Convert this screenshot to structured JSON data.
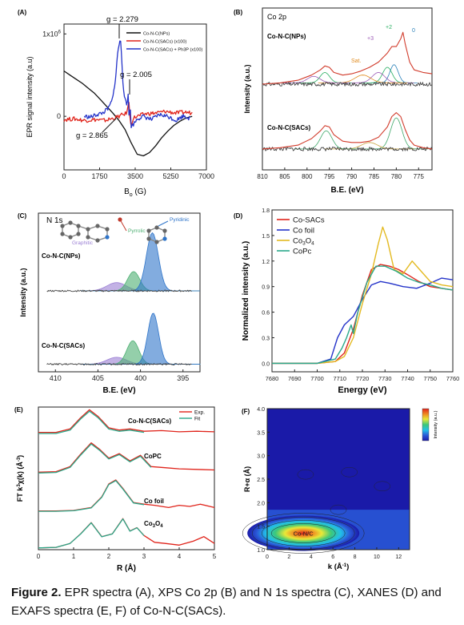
{
  "figure": {
    "caption_label": "Figure 2.",
    "caption_text": " EPR spectra (A), XPS Co 2p (B) and N 1s spectra (C), XANES (D) and EXAFS spectra (E, F) of Co-N-C(SACs)."
  },
  "chart_data": [
    {
      "id": "A",
      "panel_label": "(A)",
      "type": "line",
      "xlabel_main": "B",
      "xlabel_sub": "o",
      "xlabel_unit": " (G)",
      "ylabel": "EPR signal intensity (a.u)",
      "xlim": [
        0,
        7000
      ],
      "xticks": [
        0,
        1750,
        3500,
        5250,
        7000
      ],
      "yticks": [
        {
          "label": "1x10",
          "sup": "6",
          "value": 1.0
        },
        {
          "label": "0",
          "value": 0
        }
      ],
      "ylim": [
        -0.65,
        1.12
      ],
      "legend_position": "top-right",
      "annotations": [
        "g = 2.279",
        "g = 2.005",
        "g = 2.865"
      ],
      "series": [
        {
          "name": "Co-N-C(NPs)",
          "color": "#111111",
          "x": [
            0,
            300,
            600,
            900,
            1200,
            1500,
            1800,
            2100,
            2400,
            2700,
            3000,
            3300,
            3600,
            3900,
            4200,
            4500,
            4800,
            5100,
            5400,
            5700,
            6000,
            6300
          ],
          "y": [
            0.55,
            0.5,
            0.45,
            0.4,
            0.34,
            0.28,
            0.2,
            0.12,
            0.04,
            -0.05,
            -0.16,
            -0.32,
            -0.46,
            -0.48,
            -0.44,
            -0.36,
            -0.26,
            -0.18,
            -0.11,
            -0.06,
            -0.02,
            0.0
          ]
        },
        {
          "name": "Co-N-C(SACs) (x100)",
          "color": "#e0241b",
          "x": [
            0,
            500,
            1000,
            1500,
            2000,
            2500,
            2900,
            3100,
            3180,
            3250,
            3300,
            3400,
            3600,
            4000,
            4500,
            5000,
            5500,
            6000,
            6300
          ],
          "y": [
            -0.04,
            -0.03,
            -0.05,
            -0.04,
            -0.05,
            -0.02,
            0.02,
            0.04,
            0.22,
            -0.06,
            -0.1,
            -0.02,
            0.0,
            0.03,
            0.04,
            0.06,
            0.04,
            0.05,
            0.04
          ]
        },
        {
          "name": "Co-N-C(SACs) + Ph3P (x100)",
          "color": "#2433c9",
          "x": [
            1000,
            1300,
            1600,
            1900,
            2200,
            2400,
            2550,
            2650,
            2750,
            2800,
            2900,
            3000,
            3100,
            3150,
            3200,
            3250,
            3300,
            3400,
            3600,
            3900,
            4300,
            4700,
            5100,
            5500,
            5900,
            6200
          ],
          "y": [
            0.0,
            -0.01,
            0.02,
            0.04,
            0.1,
            0.22,
            0.5,
            0.8,
            0.92,
            0.88,
            0.4,
            0.2,
            0.12,
            0.3,
            -0.02,
            0.14,
            -0.12,
            -0.1,
            -0.03,
            0.0,
            -0.04,
            0.02,
            0.0,
            -0.05,
            0.01,
            -0.03
          ]
        }
      ]
    },
    {
      "id": "B",
      "panel_label": "(B)",
      "type": "line",
      "title": "Co 2p",
      "xlabel": "B.E. (eV)",
      "ylabel": "Intensity (a.u.)",
      "xlim": [
        810,
        772
      ],
      "x_reversed": true,
      "xticks": [
        810,
        805,
        800,
        795,
        790,
        785,
        780,
        775
      ],
      "sample_labels": [
        "Co-N-C(NPs)",
        "Co-N-C(SACs)"
      ],
      "peak_labels": [
        "Sat.",
        "+3",
        "+2",
        "0"
      ],
      "peak_label_colors": [
        "#e08a1e",
        "#9b59b6",
        "#27ae60",
        "#2980b9"
      ],
      "curves": [
        {
          "group": "NPs",
          "role": "data",
          "color": "#444444",
          "x": [
            810,
            806,
            802,
            799,
            797,
            796,
            795,
            794,
            792,
            790,
            788,
            786,
            784,
            782,
            781,
            780,
            779,
            778.5,
            778,
            777,
            776,
            774,
            772
          ],
          "y": [
            0.55,
            0.56,
            0.58,
            0.62,
            0.66,
            0.7,
            0.68,
            0.64,
            0.62,
            0.63,
            0.65,
            0.68,
            0.72,
            0.8,
            0.85,
            0.84,
            0.9,
            0.96,
            0.86,
            0.72,
            0.66,
            0.64,
            0.63
          ]
        },
        {
          "group": "NPs",
          "role": "fit",
          "color": "#d13b2b",
          "x": [
            810,
            806,
            802,
            799,
            797,
            796,
            795,
            794,
            792,
            790,
            788,
            786,
            784,
            782,
            781,
            780,
            779,
            778.5,
            778,
            777,
            776,
            774,
            772
          ],
          "y": [
            0.55,
            0.56,
            0.58,
            0.62,
            0.66,
            0.69,
            0.68,
            0.64,
            0.62,
            0.63,
            0.65,
            0.68,
            0.72,
            0.79,
            0.84,
            0.84,
            0.9,
            0.95,
            0.86,
            0.72,
            0.66,
            0.64,
            0.63
          ]
        },
        {
          "group": "SACs",
          "role": "data",
          "color": "#444444",
          "x": [
            810,
            806,
            802,
            799,
            797,
            796,
            795,
            794,
            792,
            790,
            788,
            786,
            784,
            782,
            781,
            780,
            779,
            778,
            777,
            776,
            774,
            772
          ],
          "y": [
            0.05,
            0.06,
            0.08,
            0.13,
            0.2,
            0.24,
            0.22,
            0.16,
            0.11,
            0.1,
            0.1,
            0.11,
            0.14,
            0.22,
            0.3,
            0.34,
            0.3,
            0.2,
            0.12,
            0.08,
            0.06,
            0.05
          ]
        },
        {
          "group": "SACs",
          "role": "fit",
          "color": "#d13b2b",
          "x": [
            810,
            806,
            802,
            799,
            797,
            796,
            795,
            794,
            792,
            790,
            788,
            786,
            784,
            782,
            781,
            780,
            779,
            778,
            777,
            776,
            774,
            772
          ],
          "y": [
            0.05,
            0.06,
            0.08,
            0.13,
            0.19,
            0.23,
            0.22,
            0.16,
            0.11,
            0.1,
            0.1,
            0.11,
            0.14,
            0.22,
            0.3,
            0.33,
            0.3,
            0.2,
            0.12,
            0.08,
            0.06,
            0.05
          ]
        }
      ]
    },
    {
      "id": "C",
      "panel_label": "(C)",
      "type": "area",
      "title": "N 1s",
      "xlabel": "B.E. (eV)",
      "ylabel": "Intensity (a.u.)",
      "xlim": [
        412,
        393
      ],
      "x_reversed": true,
      "xticks": [
        410,
        405,
        400,
        395
      ],
      "sample_labels": [
        "Co-N-C(NPs)",
        "Co-N-C(SACs)"
      ],
      "species_labels": [
        "Pyrrolic",
        "Pyridinic",
        "Graphitic"
      ],
      "species_colors": [
        "#4caf72",
        "#2e74c9",
        "#9b7fd4"
      ],
      "peaks": {
        "NPs": {
          "baseline": 0.55,
          "graphitic": [
            402.8,
            0.06,
            1.6
          ],
          "pyrrolic": [
            400.8,
            0.14,
            1.0
          ],
          "pyridinic": [
            398.6,
            0.42,
            1.0
          ]
        },
        "SACs": {
          "baseline": 0.02,
          "graphitic": [
            402.8,
            0.05,
            1.6
          ],
          "pyrrolic": [
            400.9,
            0.17,
            1.0
          ],
          "pyridinic": [
            398.5,
            0.37,
            0.9
          ]
        }
      }
    },
    {
      "id": "D",
      "panel_label": "(D)",
      "type": "line",
      "xlabel": "Energy (eV)",
      "ylabel": "Normalized intensity (a.u.)",
      "xlim": [
        7680,
        7760
      ],
      "xticks": [
        7680,
        7690,
        7700,
        7710,
        7720,
        7730,
        7740,
        7750,
        7760
      ],
      "ylim": [
        -0.1,
        1.8
      ],
      "yticks": [
        0.0,
        0.3,
        0.6,
        0.9,
        1.2,
        1.5,
        1.8
      ],
      "legend_position": "top-left",
      "series": [
        {
          "name": "Co-SACs",
          "color": "#e0241b",
          "x": [
            7680,
            7700,
            7708,
            7712,
            7716,
            7720,
            7724,
            7728,
            7732,
            7736,
            7740,
            7745,
            7750,
            7755,
            7760
          ],
          "y": [
            0.0,
            0.0,
            0.02,
            0.12,
            0.4,
            0.8,
            1.1,
            1.16,
            1.14,
            1.1,
            1.04,
            0.96,
            0.9,
            0.88,
            0.86
          ]
        },
        {
          "name": "Co foil",
          "color": "#2433c9",
          "x": [
            7680,
            7700,
            7706,
            7709,
            7712,
            7716,
            7720,
            7724,
            7728,
            7732,
            7738,
            7744,
            7750,
            7755,
            7760
          ],
          "y": [
            0.0,
            0.0,
            0.05,
            0.3,
            0.45,
            0.55,
            0.75,
            0.92,
            0.96,
            0.94,
            0.9,
            0.88,
            0.94,
            1.0,
            0.98
          ]
        },
        {
          "name": "Co3O4",
          "color": "#e3b91f",
          "name_main": "Co",
          "name_sub1": "3",
          "name_mid": "O",
          "name_sub2": "4",
          "x": [
            7680,
            7700,
            7708,
            7712,
            7716,
            7720,
            7724,
            7727,
            7729,
            7731,
            7734,
            7738,
            7742,
            7746,
            7750,
            7755,
            7760
          ],
          "y": [
            0.0,
            0.0,
            0.02,
            0.08,
            0.3,
            0.7,
            1.05,
            1.4,
            1.6,
            1.45,
            1.1,
            1.05,
            1.2,
            1.08,
            0.96,
            0.92,
            0.9
          ]
        },
        {
          "name": "CoPc",
          "color": "#2aa88a",
          "x": [
            7680,
            7700,
            7708,
            7711,
            7713,
            7715,
            7716,
            7718,
            7722,
            7726,
            7730,
            7735,
            7740,
            7745,
            7750,
            7755,
            7760
          ],
          "y": [
            0.0,
            0.0,
            0.05,
            0.18,
            0.3,
            0.45,
            0.35,
            0.6,
            0.95,
            1.14,
            1.14,
            1.08,
            1.0,
            0.95,
            0.92,
            0.88,
            0.86
          ]
        }
      ]
    },
    {
      "id": "E",
      "panel_label": "(E)",
      "type": "line",
      "xlabel": "R (Å)",
      "ylabel": "FT k",
      "ylabel_sup": "3",
      "ylabel_rest": "χ(k) (Å",
      "ylabel_sup2": "-3",
      "ylabel_end": ")",
      "xlim": [
        0,
        5
      ],
      "xticks": [
        0,
        1,
        2,
        3,
        4,
        5
      ],
      "legend_position": "top-right",
      "legend": [
        "Exp.",
        "Fit"
      ],
      "legend_colors": [
        "#e0241b",
        "#2aa88a"
      ],
      "sample_labels": [
        "Co-N-C(SACs)",
        "CoPC",
        "Co foil",
        "Co3O4"
      ],
      "traces": [
        {
          "label": "Co-N-C(SACs)",
          "offset": 3.25,
          "x": [
            0,
            0.5,
            0.9,
            1.2,
            1.45,
            1.7,
            2.0,
            2.3,
            2.6,
            3.0,
            3.5,
            4.0,
            4.5,
            5.0
          ],
          "y": [
            0.02,
            0.02,
            0.08,
            0.28,
            0.42,
            0.3,
            0.1,
            0.06,
            0.08,
            0.04,
            0.05,
            0.03,
            0.04,
            0.03
          ]
        },
        {
          "label": "CoPC",
          "offset": 2.15,
          "x": [
            0,
            0.5,
            0.9,
            1.2,
            1.5,
            1.75,
            2.0,
            2.3,
            2.6,
            2.9,
            3.2,
            3.6,
            4.0,
            4.5,
            5.0
          ],
          "y": [
            0.0,
            0.01,
            0.1,
            0.32,
            0.52,
            0.4,
            0.25,
            0.33,
            0.2,
            0.3,
            0.1,
            0.08,
            0.06,
            0.05,
            0.04
          ]
        },
        {
          "label": "Co foil",
          "offset": 1.05,
          "x": [
            0,
            0.5,
            1.0,
            1.5,
            1.8,
            2.0,
            2.2,
            2.4,
            2.7,
            3.0,
            3.3,
            3.7,
            4.0,
            4.3,
            4.6,
            5.0
          ],
          "y": [
            0.0,
            0.0,
            0.01,
            0.06,
            0.25,
            0.48,
            0.55,
            0.4,
            0.15,
            0.12,
            0.1,
            0.06,
            0.1,
            0.08,
            0.12,
            0.06
          ]
        },
        {
          "label": "Co3O4",
          "offset": 0.0,
          "x": [
            0,
            0.5,
            0.9,
            1.2,
            1.5,
            1.8,
            2.1,
            2.4,
            2.6,
            2.8,
            3.0,
            3.3,
            3.6,
            4.0,
            4.4,
            4.7,
            5.0
          ],
          "y": [
            0.0,
            0.01,
            0.08,
            0.25,
            0.45,
            0.2,
            0.25,
            0.52,
            0.3,
            0.36,
            0.22,
            0.1,
            0.08,
            0.05,
            0.12,
            0.2,
            0.08
          ]
        }
      ]
    },
    {
      "id": "F",
      "panel_label": "(F)",
      "type": "heatmap",
      "xlabel": "k (Å",
      "xlabel_sup": "-1",
      "xlabel_end": ")",
      "ylabel": "R+α (Å)",
      "colorbar_label": "Intensity (a.u.)",
      "xlim": [
        0,
        13
      ],
      "xticks": [
        0,
        2,
        4,
        6,
        8,
        10,
        12
      ],
      "ylim": [
        1.0,
        4.0
      ],
      "yticks": [
        1.0,
        1.5,
        2.0,
        2.5,
        3.0,
        3.5,
        4.0
      ],
      "annotation": "Co-N/C",
      "hotspot_center": [
        3.3,
        1.35
      ],
      "colors": [
        "#1a1aa8",
        "#2a5ad8",
        "#22c0e8",
        "#3cc87a",
        "#e8e838",
        "#f08a22",
        "#e0241b"
      ]
    }
  ]
}
